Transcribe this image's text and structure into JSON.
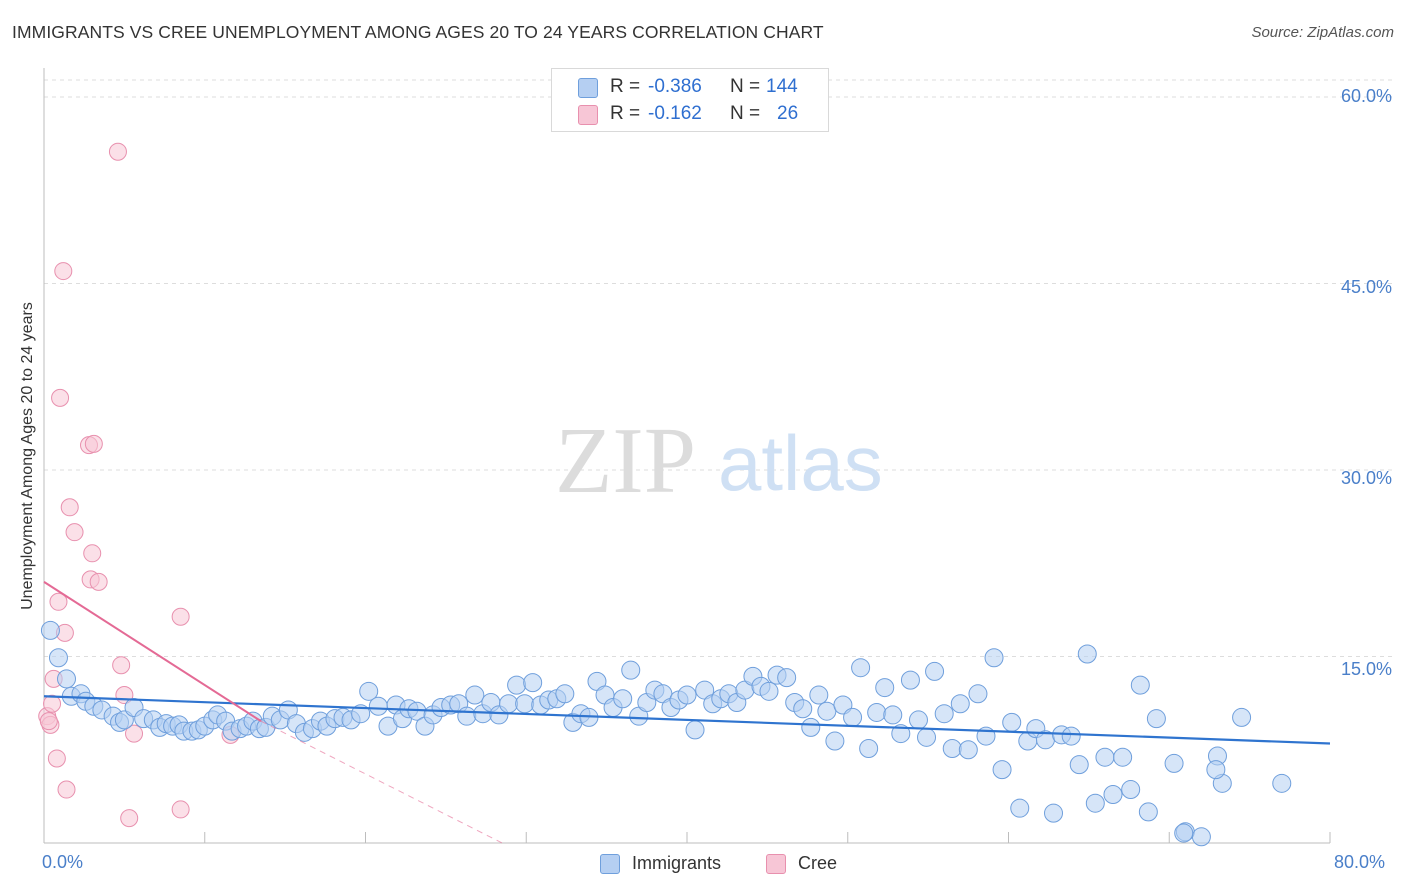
{
  "title": "IMMIGRANTS VS CREE UNEMPLOYMENT AMONG AGES 20 TO 24 YEARS CORRELATION CHART",
  "source": "Source: ZipAtlas.com",
  "watermark": {
    "zip": "ZIP",
    "atlas": "atlas"
  },
  "stats": {
    "immigrants": {
      "r_label": "R =",
      "r_value": "-0.386",
      "n_label": "N =",
      "n_value": "144"
    },
    "cree": {
      "r_label": "R =",
      "r_value": "-0.162",
      "n_label": "N =",
      "n_value": "26"
    }
  },
  "legend": {
    "immigrants": "Immigrants",
    "cree": "Cree"
  },
  "colors": {
    "immigrants_fill": "#b5cff2",
    "immigrants_stroke": "#6f9fdc",
    "immigrants_line": "#2f74cf",
    "cree_fill": "#f7c6d6",
    "cree_stroke": "#e890ae",
    "cree_line": "#e46a95",
    "grid": "#dddddd",
    "tick_text": "#4a7fc9"
  },
  "chart_data": {
    "type": "scatter",
    "title": "IMMIGRANTS VS CREE UNEMPLOYMENT AMONG AGES 20 TO 24 YEARS CORRELATION CHART",
    "xlabel": "",
    "ylabel": "Unemployment Among Ages 20 to 24 years",
    "xlim": [
      0,
      80
    ],
    "ylim": [
      0,
      60
    ],
    "x_tick_labels": [
      "0.0%",
      "80.0%"
    ],
    "y_ticks": [
      15,
      30,
      45,
      60
    ],
    "y_tick_labels": [
      "15.0%",
      "30.0%",
      "45.0%",
      "60.0%"
    ],
    "grid": true,
    "series": [
      {
        "name": "Immigrants",
        "trend": {
          "x": [
            0,
            80
          ],
          "y": [
            11.8,
            8.0
          ]
        },
        "points": [
          [
            0.4,
            17.1
          ],
          [
            0.9,
            14.9
          ],
          [
            1.4,
            13.2
          ],
          [
            1.7,
            11.8
          ],
          [
            2.3,
            12.0
          ],
          [
            2.6,
            11.4
          ],
          [
            3.1,
            11.0
          ],
          [
            3.6,
            10.7
          ],
          [
            4.3,
            10.2
          ],
          [
            4.7,
            9.7
          ],
          [
            5.0,
            9.9
          ],
          [
            5.6,
            10.9
          ],
          [
            6.2,
            10.0
          ],
          [
            6.8,
            9.9
          ],
          [
            7.2,
            9.3
          ],
          [
            7.6,
            9.6
          ],
          [
            8.0,
            9.4
          ],
          [
            8.4,
            9.5
          ],
          [
            8.7,
            9.0
          ],
          [
            9.2,
            9.0
          ],
          [
            9.6,
            9.1
          ],
          [
            10.0,
            9.4
          ],
          [
            10.5,
            9.9
          ],
          [
            10.8,
            10.3
          ],
          [
            11.3,
            9.8
          ],
          [
            11.7,
            9.0
          ],
          [
            12.2,
            9.2
          ],
          [
            12.6,
            9.4
          ],
          [
            13.0,
            9.8
          ],
          [
            13.4,
            9.2
          ],
          [
            13.8,
            9.3
          ],
          [
            14.2,
            10.2
          ],
          [
            14.7,
            9.9
          ],
          [
            15.2,
            10.7
          ],
          [
            15.7,
            9.6
          ],
          [
            16.2,
            8.9
          ],
          [
            16.7,
            9.2
          ],
          [
            17.2,
            9.8
          ],
          [
            17.6,
            9.4
          ],
          [
            18.1,
            10.0
          ],
          [
            18.6,
            10.1
          ],
          [
            19.1,
            9.9
          ],
          [
            19.7,
            10.4
          ],
          [
            20.2,
            12.2
          ],
          [
            20.8,
            11.0
          ],
          [
            21.4,
            9.4
          ],
          [
            21.9,
            11.1
          ],
          [
            22.3,
            10.0
          ],
          [
            22.7,
            10.8
          ],
          [
            23.2,
            10.6
          ],
          [
            23.7,
            9.4
          ],
          [
            24.2,
            10.3
          ],
          [
            24.7,
            10.9
          ],
          [
            25.3,
            11.1
          ],
          [
            25.8,
            11.2
          ],
          [
            26.3,
            10.2
          ],
          [
            26.8,
            11.9
          ],
          [
            27.3,
            10.4
          ],
          [
            27.8,
            11.3
          ],
          [
            28.3,
            10.3
          ],
          [
            28.9,
            11.2
          ],
          [
            29.4,
            12.7
          ],
          [
            29.9,
            11.2
          ],
          [
            30.4,
            12.9
          ],
          [
            30.9,
            11.1
          ],
          [
            31.4,
            11.5
          ],
          [
            31.9,
            11.6
          ],
          [
            32.4,
            12.0
          ],
          [
            32.9,
            9.7
          ],
          [
            33.4,
            10.4
          ],
          [
            33.9,
            10.1
          ],
          [
            34.4,
            13.0
          ],
          [
            34.9,
            11.9
          ],
          [
            35.4,
            10.9
          ],
          [
            36.0,
            11.6
          ],
          [
            36.5,
            13.9
          ],
          [
            37.0,
            10.2
          ],
          [
            37.5,
            11.3
          ],
          [
            38.0,
            12.3
          ],
          [
            38.5,
            12.0
          ],
          [
            39.0,
            10.9
          ],
          [
            39.5,
            11.5
          ],
          [
            40.0,
            11.9
          ],
          [
            40.5,
            9.1
          ],
          [
            41.1,
            12.3
          ],
          [
            41.6,
            11.2
          ],
          [
            42.1,
            11.6
          ],
          [
            42.6,
            12.0
          ],
          [
            43.1,
            11.3
          ],
          [
            43.6,
            12.3
          ],
          [
            44.1,
            13.4
          ],
          [
            44.6,
            12.6
          ],
          [
            45.1,
            12.2
          ],
          [
            45.6,
            13.5
          ],
          [
            46.2,
            13.3
          ],
          [
            46.7,
            11.3
          ],
          [
            47.2,
            10.8
          ],
          [
            47.7,
            9.3
          ],
          [
            48.2,
            11.9
          ],
          [
            48.7,
            10.6
          ],
          [
            49.2,
            8.2
          ],
          [
            49.7,
            11.1
          ],
          [
            50.3,
            10.1
          ],
          [
            50.8,
            14.1
          ],
          [
            51.3,
            7.6
          ],
          [
            51.8,
            10.5
          ],
          [
            52.3,
            12.5
          ],
          [
            52.8,
            10.3
          ],
          [
            53.3,
            8.8
          ],
          [
            53.9,
            13.1
          ],
          [
            54.4,
            9.9
          ],
          [
            54.9,
            8.5
          ],
          [
            55.4,
            13.8
          ],
          [
            56.0,
            10.4
          ],
          [
            56.5,
            7.6
          ],
          [
            57.0,
            11.2
          ],
          [
            57.5,
            7.5
          ],
          [
            58.1,
            12.0
          ],
          [
            58.6,
            8.6
          ],
          [
            59.1,
            14.9
          ],
          [
            59.6,
            5.9
          ],
          [
            60.2,
            9.7
          ],
          [
            60.7,
            2.8
          ],
          [
            61.2,
            8.2
          ],
          [
            61.7,
            9.2
          ],
          [
            62.3,
            8.3
          ],
          [
            62.8,
            2.4
          ],
          [
            63.3,
            8.7
          ],
          [
            63.9,
            8.6
          ],
          [
            64.4,
            6.3
          ],
          [
            64.9,
            15.2
          ],
          [
            65.4,
            3.2
          ],
          [
            66.0,
            6.9
          ],
          [
            66.5,
            3.9
          ],
          [
            67.1,
            6.9
          ],
          [
            67.6,
            4.3
          ],
          [
            68.2,
            12.7
          ],
          [
            68.7,
            2.5
          ],
          [
            69.2,
            10.0
          ],
          [
            70.3,
            6.4
          ],
          [
            71.0,
            0.9
          ],
          [
            72.0,
            0.5
          ],
          [
            73.0,
            7.0
          ],
          [
            74.5,
            10.1
          ],
          [
            73.3,
            4.8
          ],
          [
            72.9,
            5.9
          ],
          [
            77.0,
            4.8
          ],
          [
            70.9,
            0.8
          ]
        ]
      },
      {
        "name": "Cree",
        "trend": {
          "x": [
            0,
            13.5
          ],
          "y": [
            21.0,
            9.8
          ]
        },
        "trend_dashed": {
          "x": [
            13.5,
            28.5
          ],
          "y": [
            9.8,
            0.0
          ]
        },
        "points": [
          [
            0.2,
            10.2
          ],
          [
            0.4,
            9.5
          ],
          [
            0.5,
            11.2
          ],
          [
            0.6,
            13.2
          ],
          [
            0.8,
            6.8
          ],
          [
            0.9,
            19.4
          ],
          [
            1.2,
            46.0
          ],
          [
            1.0,
            35.8
          ],
          [
            1.3,
            16.9
          ],
          [
            1.6,
            27.0
          ],
          [
            1.4,
            4.3
          ],
          [
            1.9,
            25.0
          ],
          [
            2.8,
            32.0
          ],
          [
            3.1,
            32.1
          ],
          [
            2.9,
            21.2
          ],
          [
            3.0,
            23.3
          ],
          [
            3.4,
            21.0
          ],
          [
            4.6,
            55.6
          ],
          [
            4.8,
            14.3
          ],
          [
            5.0,
            11.9
          ],
          [
            5.3,
            2.0
          ],
          [
            5.6,
            8.8
          ],
          [
            8.5,
            18.2
          ],
          [
            8.5,
            2.7
          ],
          [
            11.6,
            8.7
          ],
          [
            0.3,
            9.8
          ]
        ]
      }
    ]
  }
}
